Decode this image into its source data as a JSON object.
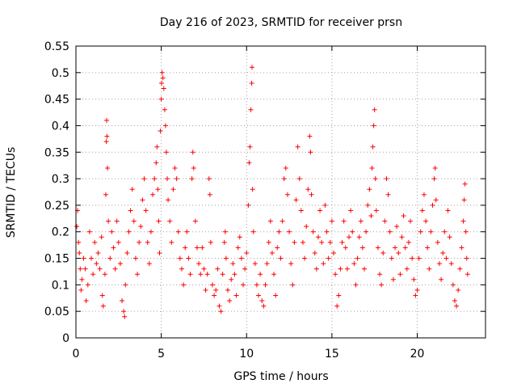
{
  "chart_data": {
    "type": "scatter",
    "title": "Day 216 of 2023, SRMTID for receiver prsn",
    "xlabel": "GPS time / hours",
    "ylabel": "SRMTID / TECUs",
    "xlim": [
      0,
      24
    ],
    "ylim": [
      0,
      0.55
    ],
    "xticks": [
      0,
      5,
      10,
      15,
      20
    ],
    "xtick_labels": [
      "0",
      "5",
      "10",
      "15",
      "20"
    ],
    "yticks": [
      0,
      0.05,
      0.1,
      0.15,
      0.2,
      0.25,
      0.3,
      0.35,
      0.4,
      0.45,
      0.5,
      0.55
    ],
    "ytick_labels": [
      "0",
      "0.05",
      "0.1",
      "0.15",
      "0.2",
      "0.25",
      "0.3",
      "0.35",
      "0.4",
      "0.45",
      "0.5",
      "0.55"
    ],
    "grid": true,
    "marker": "+",
    "marker_color": "#ff0000",
    "series": [
      {
        "name": "SRMTID",
        "points": [
          [
            0.05,
            0.21
          ],
          [
            0.1,
            0.24
          ],
          [
            0.15,
            0.18
          ],
          [
            0.2,
            0.16
          ],
          [
            0.25,
            0.13
          ],
          [
            0.3,
            0.09
          ],
          [
            0.35,
            0.11
          ],
          [
            0.45,
            0.15
          ],
          [
            0.55,
            0.13
          ],
          [
            0.6,
            0.07
          ],
          [
            0.7,
            0.1
          ],
          [
            0.8,
            0.2
          ],
          [
            0.9,
            0.15
          ],
          [
            1.0,
            0.12
          ],
          [
            1.1,
            0.18
          ],
          [
            1.2,
            0.14
          ],
          [
            1.3,
            0.16
          ],
          [
            1.4,
            0.13
          ],
          [
            1.5,
            0.19
          ],
          [
            1.55,
            0.08
          ],
          [
            1.6,
            0.06
          ],
          [
            1.7,
            0.12
          ],
          [
            1.75,
            0.27
          ],
          [
            1.78,
            0.37
          ],
          [
            1.8,
            0.41
          ],
          [
            1.82,
            0.38
          ],
          [
            1.85,
            0.32
          ],
          [
            1.9,
            0.22
          ],
          [
            2.0,
            0.15
          ],
          [
            2.1,
            0.2
          ],
          [
            2.2,
            0.17
          ],
          [
            2.3,
            0.13
          ],
          [
            2.4,
            0.22
          ],
          [
            2.5,
            0.18
          ],
          [
            2.6,
            0.14
          ],
          [
            2.7,
            0.07
          ],
          [
            2.8,
            0.05
          ],
          [
            2.85,
            0.04
          ],
          [
            2.9,
            0.1
          ],
          [
            3.0,
            0.16
          ],
          [
            3.1,
            0.2
          ],
          [
            3.2,
            0.24
          ],
          [
            3.3,
            0.28
          ],
          [
            3.4,
            0.22
          ],
          [
            3.5,
            0.15
          ],
          [
            3.6,
            0.12
          ],
          [
            3.7,
            0.18
          ],
          [
            3.8,
            0.21
          ],
          [
            3.9,
            0.26
          ],
          [
            4.0,
            0.3
          ],
          [
            4.1,
            0.24
          ],
          [
            4.2,
            0.18
          ],
          [
            4.3,
            0.14
          ],
          [
            4.4,
            0.2
          ],
          [
            4.5,
            0.27
          ],
          [
            4.6,
            0.3
          ],
          [
            4.7,
            0.33
          ],
          [
            4.75,
            0.36
          ],
          [
            4.8,
            0.28
          ],
          [
            4.85,
            0.22
          ],
          [
            4.9,
            0.16
          ],
          [
            4.95,
            0.39
          ],
          [
            5.0,
            0.45
          ],
          [
            5.02,
            0.48
          ],
          [
            5.05,
            0.5
          ],
          [
            5.1,
            0.49
          ],
          [
            5.15,
            0.47
          ],
          [
            5.2,
            0.43
          ],
          [
            5.25,
            0.4
          ],
          [
            5.3,
            0.35
          ],
          [
            5.35,
            0.3
          ],
          [
            5.4,
            0.26
          ],
          [
            5.5,
            0.22
          ],
          [
            5.6,
            0.18
          ],
          [
            5.7,
            0.28
          ],
          [
            5.8,
            0.32
          ],
          [
            5.9,
            0.3
          ],
          [
            6.0,
            0.2
          ],
          [
            6.1,
            0.15
          ],
          [
            6.2,
            0.13
          ],
          [
            6.3,
            0.1
          ],
          [
            6.4,
            0.17
          ],
          [
            6.5,
            0.2
          ],
          [
            6.6,
            0.15
          ],
          [
            6.7,
            0.12
          ],
          [
            6.8,
            0.3
          ],
          [
            6.85,
            0.35
          ],
          [
            6.9,
            0.32
          ],
          [
            7.0,
            0.22
          ],
          [
            7.1,
            0.17
          ],
          [
            7.2,
            0.14
          ],
          [
            7.3,
            0.12
          ],
          [
            7.4,
            0.17
          ],
          [
            7.5,
            0.13
          ],
          [
            7.6,
            0.09
          ],
          [
            7.7,
            0.12
          ],
          [
            7.8,
            0.3
          ],
          [
            7.85,
            0.27
          ],
          [
            7.9,
            0.18
          ],
          [
            8.0,
            0.1
          ],
          [
            8.1,
            0.08
          ],
          [
            8.2,
            0.09
          ],
          [
            8.3,
            0.13
          ],
          [
            8.4,
            0.06
          ],
          [
            8.5,
            0.05
          ],
          [
            8.6,
            0.12
          ],
          [
            8.7,
            0.18
          ],
          [
            8.75,
            0.2
          ],
          [
            8.8,
            0.15
          ],
          [
            8.9,
            0.09
          ],
          [
            9.0,
            0.07
          ],
          [
            9.1,
            0.11
          ],
          [
            9.2,
            0.14
          ],
          [
            9.3,
            0.12
          ],
          [
            9.4,
            0.08
          ],
          [
            9.5,
            0.17
          ],
          [
            9.6,
            0.19
          ],
          [
            9.7,
            0.15
          ],
          [
            9.8,
            0.1
          ],
          [
            9.9,
            0.13
          ],
          [
            10.0,
            0.16
          ],
          [
            10.1,
            0.25
          ],
          [
            10.15,
            0.33
          ],
          [
            10.2,
            0.36
          ],
          [
            10.25,
            0.43
          ],
          [
            10.3,
            0.48
          ],
          [
            10.32,
            0.51
          ],
          [
            10.35,
            0.28
          ],
          [
            10.4,
            0.2
          ],
          [
            10.5,
            0.14
          ],
          [
            10.6,
            0.1
          ],
          [
            10.7,
            0.08
          ],
          [
            10.8,
            0.12
          ],
          [
            10.9,
            0.07
          ],
          [
            11.0,
            0.06
          ],
          [
            11.1,
            0.1
          ],
          [
            11.2,
            0.14
          ],
          [
            11.3,
            0.18
          ],
          [
            11.4,
            0.22
          ],
          [
            11.5,
            0.16
          ],
          [
            11.6,
            0.12
          ],
          [
            11.7,
            0.08
          ],
          [
            11.8,
            0.17
          ],
          [
            11.9,
            0.2
          ],
          [
            12.0,
            0.15
          ],
          [
            12.1,
            0.22
          ],
          [
            12.2,
            0.3
          ],
          [
            12.3,
            0.32
          ],
          [
            12.4,
            0.27
          ],
          [
            12.5,
            0.2
          ],
          [
            12.6,
            0.14
          ],
          [
            12.7,
            0.1
          ],
          [
            12.8,
            0.18
          ],
          [
            12.9,
            0.26
          ],
          [
            13.0,
            0.36
          ],
          [
            13.1,
            0.3
          ],
          [
            13.2,
            0.24
          ],
          [
            13.3,
            0.18
          ],
          [
            13.4,
            0.15
          ],
          [
            13.5,
            0.21
          ],
          [
            13.6,
            0.28
          ],
          [
            13.7,
            0.38
          ],
          [
            13.75,
            0.35
          ],
          [
            13.8,
            0.27
          ],
          [
            13.9,
            0.2
          ],
          [
            14.0,
            0.16
          ],
          [
            14.1,
            0.13
          ],
          [
            14.2,
            0.19
          ],
          [
            14.3,
            0.24
          ],
          [
            14.4,
            0.18
          ],
          [
            14.5,
            0.14
          ],
          [
            14.6,
            0.25
          ],
          [
            14.7,
            0.2
          ],
          [
            14.8,
            0.15
          ],
          [
            14.9,
            0.18
          ],
          [
            15.0,
            0.22
          ],
          [
            15.1,
            0.16
          ],
          [
            15.2,
            0.12
          ],
          [
            15.3,
            0.06
          ],
          [
            15.4,
            0.08
          ],
          [
            15.5,
            0.13
          ],
          [
            15.6,
            0.18
          ],
          [
            15.7,
            0.22
          ],
          [
            15.8,
            0.17
          ],
          [
            15.9,
            0.13
          ],
          [
            16.0,
            0.19
          ],
          [
            16.1,
            0.24
          ],
          [
            16.2,
            0.2
          ],
          [
            16.3,
            0.14
          ],
          [
            16.4,
            0.1
          ],
          [
            16.5,
            0.15
          ],
          [
            16.6,
            0.19
          ],
          [
            16.7,
            0.22
          ],
          [
            16.8,
            0.17
          ],
          [
            16.9,
            0.13
          ],
          [
            17.0,
            0.2
          ],
          [
            17.1,
            0.25
          ],
          [
            17.2,
            0.28
          ],
          [
            17.3,
            0.23
          ],
          [
            17.35,
            0.32
          ],
          [
            17.4,
            0.36
          ],
          [
            17.45,
            0.4
          ],
          [
            17.5,
            0.43
          ],
          [
            17.55,
            0.3
          ],
          [
            17.6,
            0.24
          ],
          [
            17.7,
            0.17
          ],
          [
            17.8,
            0.12
          ],
          [
            17.9,
            0.1
          ],
          [
            18.0,
            0.16
          ],
          [
            18.1,
            0.22
          ],
          [
            18.2,
            0.3
          ],
          [
            18.3,
            0.27
          ],
          [
            18.4,
            0.2
          ],
          [
            18.5,
            0.15
          ],
          [
            18.6,
            0.11
          ],
          [
            18.7,
            0.17
          ],
          [
            18.8,
            0.21
          ],
          [
            18.9,
            0.16
          ],
          [
            19.0,
            0.12
          ],
          [
            19.1,
            0.19
          ],
          [
            19.2,
            0.23
          ],
          [
            19.3,
            0.17
          ],
          [
            19.4,
            0.13
          ],
          [
            19.5,
            0.18
          ],
          [
            19.6,
            0.22
          ],
          [
            19.7,
            0.15
          ],
          [
            19.8,
            0.11
          ],
          [
            19.9,
            0.08
          ],
          [
            20.0,
            0.09
          ],
          [
            20.1,
            0.15
          ],
          [
            20.2,
            0.2
          ],
          [
            20.3,
            0.24
          ],
          [
            20.4,
            0.27
          ],
          [
            20.5,
            0.22
          ],
          [
            20.6,
            0.17
          ],
          [
            20.7,
            0.13
          ],
          [
            20.8,
            0.2
          ],
          [
            20.9,
            0.25
          ],
          [
            21.0,
            0.3
          ],
          [
            21.05,
            0.32
          ],
          [
            21.1,
            0.26
          ],
          [
            21.2,
            0.18
          ],
          [
            21.3,
            0.14
          ],
          [
            21.4,
            0.11
          ],
          [
            21.5,
            0.16
          ],
          [
            21.6,
            0.2
          ],
          [
            21.7,
            0.15
          ],
          [
            21.8,
            0.24
          ],
          [
            21.9,
            0.19
          ],
          [
            22.0,
            0.14
          ],
          [
            22.1,
            0.1
          ],
          [
            22.2,
            0.07
          ],
          [
            22.3,
            0.06
          ],
          [
            22.4,
            0.09
          ],
          [
            22.5,
            0.13
          ],
          [
            22.6,
            0.17
          ],
          [
            22.7,
            0.22
          ],
          [
            22.75,
            0.26
          ],
          [
            22.8,
            0.29
          ],
          [
            22.85,
            0.2
          ],
          [
            22.9,
            0.15
          ],
          [
            22.95,
            0.12
          ]
        ]
      }
    ]
  }
}
